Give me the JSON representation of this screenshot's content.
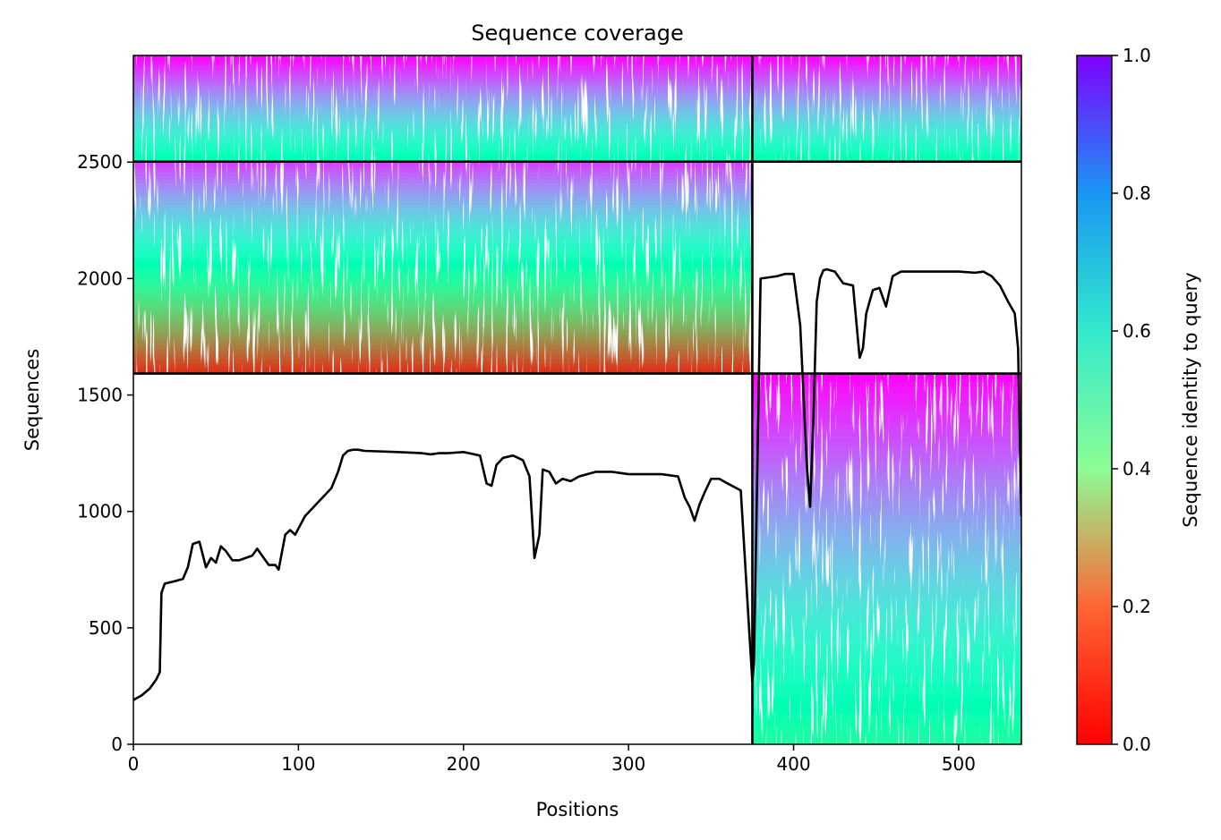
{
  "chart_data": {
    "type": "heatmap",
    "title": "Sequence coverage",
    "xlabel": "Positions",
    "ylabel": "Sequences",
    "xlim": [
      0,
      538
    ],
    "ylim": [
      0,
      2958
    ],
    "xticks": [
      0,
      100,
      200,
      300,
      400,
      500
    ],
    "yticks": [
      0,
      500,
      1000,
      1500,
      2000,
      2500
    ],
    "colorbar": {
      "label": "Sequence identity to query",
      "range": [
        0,
        1
      ],
      "ticks": [
        "0.0",
        "0.2",
        "0.4",
        "0.6",
        "0.8",
        "1.0"
      ],
      "colormap": "rainbow_r"
    },
    "chain_boundary_position": 375,
    "msa_blocks": [
      {
        "name": "paired-both-chains",
        "seq_range": [
          2502,
          2958
        ],
        "pos_range": [
          0,
          538
        ],
        "identity_top": 1.0,
        "identity_bottom": 0.48
      },
      {
        "name": "chain-1-only",
        "seq_range": [
          1592,
          2502
        ],
        "pos_range": [
          0,
          375
        ],
        "identity_top": 0.92,
        "identity_bottom": 0.05
      },
      {
        "name": "chain-2-only",
        "seq_range": [
          0,
          1592
        ],
        "pos_range": [
          375,
          538
        ],
        "identity_top": 1.0,
        "identity_bottom": 0.44
      }
    ],
    "separator_lines_seq": [
      1592,
      2502
    ],
    "separator_lines_pos": [
      375
    ],
    "coverage": {
      "name": "coverage",
      "x": [
        0,
        5,
        10,
        14,
        16,
        17,
        19,
        25,
        30,
        33,
        36,
        40,
        44,
        47,
        50,
        53,
        56,
        60,
        64,
        68,
        72,
        75,
        78,
        82,
        86,
        88,
        92,
        95,
        98,
        101,
        104,
        108,
        112,
        116,
        120,
        124,
        127,
        130,
        133,
        136,
        140,
        160,
        175,
        180,
        185,
        190,
        200,
        210,
        214,
        217,
        220,
        224,
        230,
        236,
        240,
        243,
        246,
        248,
        252,
        256,
        260,
        265,
        270,
        280,
        290,
        300,
        320,
        330,
        334,
        337,
        340,
        343,
        346,
        350,
        355,
        360,
        368,
        373,
        375,
        376,
        380,
        390,
        395,
        400,
        404,
        408,
        410,
        412,
        414,
        416,
        418,
        420,
        425,
        430,
        436,
        440,
        442,
        444,
        448,
        452,
        456,
        460,
        465,
        470,
        480,
        490,
        500,
        510,
        515,
        520,
        525,
        530,
        534,
        536,
        538
      ],
      "y": [
        190,
        210,
        240,
        280,
        310,
        650,
        690,
        700,
        710,
        760,
        860,
        870,
        760,
        800,
        780,
        850,
        830,
        790,
        790,
        800,
        810,
        840,
        810,
        770,
        770,
        750,
        900,
        920,
        900,
        940,
        980,
        1010,
        1040,
        1070,
        1100,
        1170,
        1240,
        1260,
        1265,
        1265,
        1260,
        1255,
        1250,
        1245,
        1250,
        1250,
        1255,
        1240,
        1120,
        1110,
        1200,
        1230,
        1240,
        1220,
        1150,
        800,
        900,
        1180,
        1170,
        1120,
        1140,
        1130,
        1150,
        1170,
        1170,
        1160,
        1160,
        1150,
        1060,
        1020,
        960,
        1030,
        1080,
        1140,
        1140,
        1120,
        1090,
        500,
        270,
        350,
        2000,
        2010,
        2020,
        2020,
        1800,
        1200,
        1020,
        1400,
        1900,
        2000,
        2035,
        2040,
        2030,
        1980,
        1970,
        1660,
        1700,
        1850,
        1950,
        1960,
        1880,
        2010,
        2030,
        2030,
        2030,
        2030,
        2030,
        2025,
        2030,
        2010,
        1970,
        1900,
        1850,
        1700,
        980
      ]
    }
  }
}
